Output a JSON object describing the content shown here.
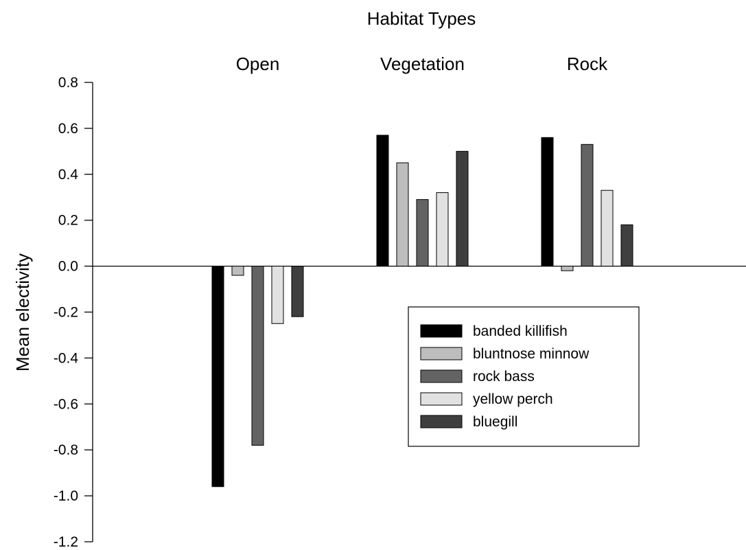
{
  "chart_data": {
    "type": "bar",
    "title": "Habitat Types",
    "xlabel": "",
    "ylabel": "Mean electivity",
    "categories": [
      "Open",
      "Vegetation",
      "Rock"
    ],
    "ylim": [
      -1.2,
      0.8
    ],
    "yticks": [
      0.8,
      0.6,
      0.4,
      0.2,
      0.0,
      -0.2,
      -0.4,
      -0.6,
      -0.8,
      -1.0,
      -1.2
    ],
    "ytick_labels": [
      "0.8",
      "0.6",
      "0.4",
      "0.2",
      "0.0",
      "-0.2",
      "-0.4",
      "-0.6",
      "-0.8",
      "-1.0",
      "-1.2"
    ],
    "grid": false,
    "legend_position": "center-right",
    "series": [
      {
        "name": "banded killifish",
        "color": "#000000",
        "values": [
          -0.96,
          0.57,
          0.56
        ]
      },
      {
        "name": "bluntnose minnow",
        "color": "#bdbdbd",
        "values": [
          -0.04,
          0.45,
          -0.02
        ]
      },
      {
        "name": "rock bass",
        "color": "#636363",
        "values": [
          -0.78,
          0.29,
          0.53
        ]
      },
      {
        "name": "yellow perch",
        "color": "#e1e1e1",
        "values": [
          -0.25,
          0.32,
          0.33
        ]
      },
      {
        "name": "bluegill",
        "color": "#3f3f3f",
        "values": [
          -0.22,
          0.5,
          0.18
        ]
      }
    ]
  }
}
